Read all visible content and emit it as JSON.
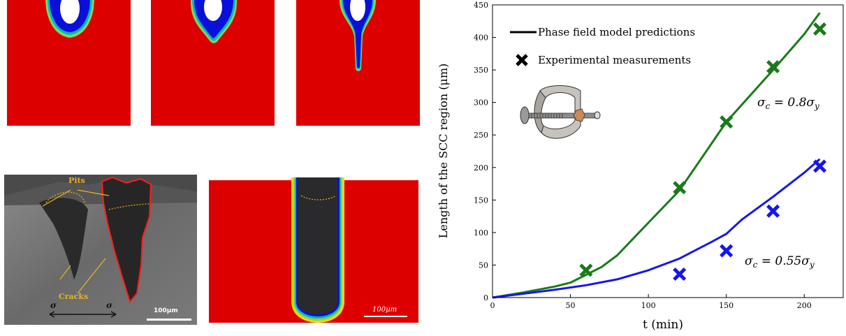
{
  "sem_panel": {
    "labels": {
      "pits": "Pits",
      "cracks": "Cracks",
      "sigma_left": "σ",
      "sigma_right": "σ"
    },
    "scale_bar": "100μm"
  },
  "sim_panel": {
    "scale_bar": "100μm"
  },
  "chart_data": {
    "type": "line",
    "xlabel": "t (min)",
    "ylabel": "Length of the SCC region (μm)",
    "xlim": [
      0,
      225
    ],
    "ylim": [
      0,
      450
    ],
    "xticks": [
      0,
      50,
      100,
      150,
      200
    ],
    "yticks": [
      0,
      50,
      100,
      150,
      200,
      250,
      300,
      350,
      400,
      450
    ],
    "legend": [
      {
        "label": "Phase field model predictions",
        "marker": "line"
      },
      {
        "label": "Experimental measurements",
        "marker": "cross"
      }
    ],
    "series": [
      {
        "kind": "model",
        "color": "#1a7a1a",
        "x": [
          0,
          20,
          40,
          50,
          60,
          70,
          80,
          90,
          100,
          120,
          150,
          180,
          200,
          210
        ],
        "y": [
          0,
          8,
          17,
          23,
          35,
          47,
          65,
          90,
          115,
          165,
          270,
          350,
          405,
          438
        ]
      },
      {
        "kind": "model",
        "color": "#1515ee",
        "x": [
          0,
          20,
          40,
          60,
          80,
          100,
          120,
          140,
          150,
          160,
          180,
          200,
          210
        ],
        "y": [
          0,
          6,
          12,
          19,
          28,
          42,
          60,
          85,
          98,
          120,
          155,
          192,
          213
        ]
      },
      {
        "kind": "experiment",
        "color": "#1a7a1a",
        "x": [
          60,
          120,
          150,
          180,
          210
        ],
        "y": [
          42,
          169,
          270,
          355,
          413
        ]
      },
      {
        "kind": "experiment",
        "color": "#1515ee",
        "x": [
          120,
          150,
          180,
          210
        ],
        "y": [
          36,
          72,
          133,
          202
        ]
      }
    ],
    "annotations": [
      {
        "text_main": "σ",
        "text_sub": "c",
        "text_rest": " = 0.8σ",
        "text_rest_sub": "y",
        "x": 160,
        "y": 302
      },
      {
        "text_main": "σ",
        "text_sub": "c",
        "text_rest": " = 0.55σ",
        "text_rest_sub": "y",
        "x": 163,
        "y": 78
      }
    ]
  }
}
